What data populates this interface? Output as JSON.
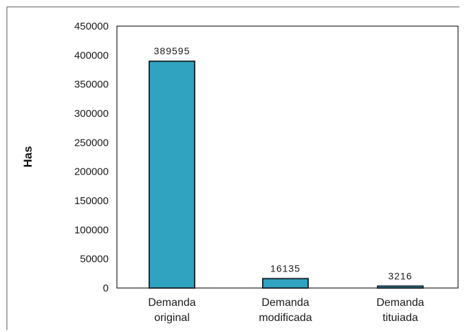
{
  "chart_data": {
    "type": "bar",
    "categories": [
      "Demanda original",
      "Demanda modificada",
      "Demanda tituiada"
    ],
    "category_lines": [
      [
        "Demanda",
        "original"
      ],
      [
        "Demanda",
        "modificada"
      ],
      [
        "Demanda",
        "tituiada"
      ]
    ],
    "values": [
      389595,
      16135,
      3216
    ],
    "data_labels": [
      "389595",
      "16135",
      "3216"
    ],
    "title": "",
    "xlabel": "",
    "ylabel": "Has",
    "ylim": [
      0,
      450000
    ],
    "yticks": [
      0,
      50000,
      100000,
      150000,
      200000,
      250000,
      300000,
      350000,
      400000,
      450000
    ],
    "ytick_labels": [
      "0",
      "50000",
      "100000",
      "150000",
      "200000",
      "250000",
      "300000",
      "350000",
      "400000",
      "450000"
    ],
    "grid": false,
    "legend": "none",
    "bar_color": "#2fa3bf"
  }
}
